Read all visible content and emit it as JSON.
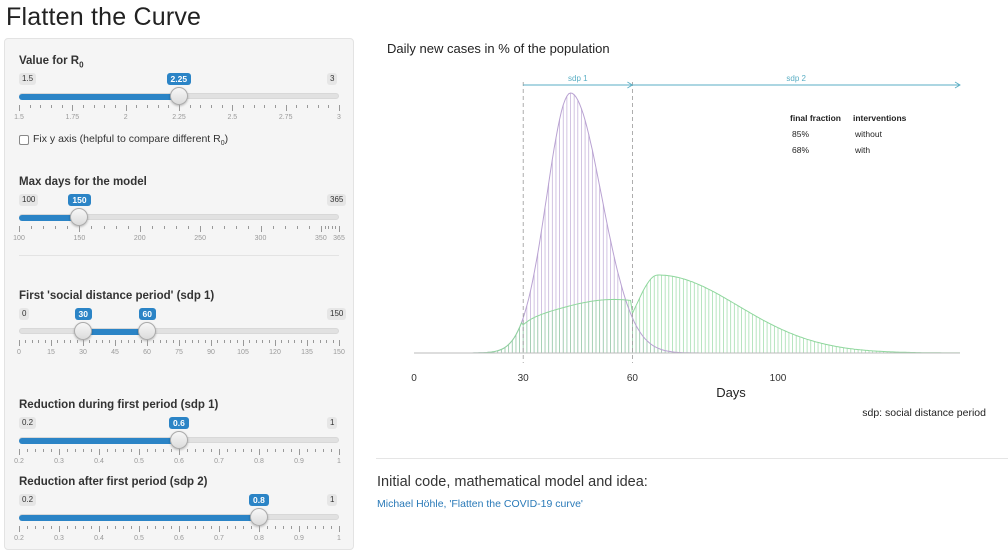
{
  "app": {
    "title": "Flatten the Curve"
  },
  "controls": {
    "r0": {
      "label": "Value for R",
      "label_sub": "0",
      "min": "1.5",
      "max": "3",
      "value": "2.25",
      "value_num": 2.25,
      "range": [
        1.5,
        3
      ],
      "ticks": [
        "1.5",
        "1.75",
        "2",
        "2.25",
        "2.5",
        "2.75",
        "3"
      ]
    },
    "fix_y": {
      "label": "Fix y axis (helpful to compare different R",
      "label_sub": "0",
      "label_end": ")",
      "checked": false
    },
    "max_days": {
      "label": "Max days for the model",
      "min": "100",
      "max": "365",
      "value": "150",
      "value_num": 150,
      "range": [
        100,
        365
      ],
      "ticks": [
        "100",
        "150",
        "200",
        "250",
        "300",
        "350",
        "365"
      ]
    },
    "sdp1": {
      "label": "First 'social distance period' (sdp 1)",
      "min": "0",
      "max": "150",
      "value_from": "30",
      "value_to": "60",
      "from_num": 30,
      "to_num": 60,
      "range": [
        0,
        150
      ],
      "ticks": [
        "0",
        "15",
        "30",
        "45",
        "60",
        "75",
        "90",
        "105",
        "120",
        "135",
        "150"
      ]
    },
    "red1": {
      "label": "Reduction during first period (sdp 1)",
      "min": "0.2",
      "max": "1",
      "value": "0.6",
      "value_num": 0.6,
      "range": [
        0.2,
        1
      ],
      "ticks": [
        "0.2",
        "0.3",
        "0.4",
        "0.5",
        "0.6",
        "0.7",
        "0.8",
        "0.9",
        "1"
      ]
    },
    "red2": {
      "label": "Reduction after first period (sdp 2)",
      "min": "0.2",
      "max": "1",
      "value": "0.8",
      "value_num": 0.8,
      "range": [
        0.2,
        1
      ],
      "ticks": [
        "0.2",
        "0.3",
        "0.4",
        "0.5",
        "0.6",
        "0.7",
        "0.8",
        "0.9",
        "1"
      ]
    }
  },
  "chart_data": {
    "type": "area",
    "title": "Daily new cases in % of the population",
    "xlabel": "Days",
    "xlim": [
      0,
      150
    ],
    "x_ticks": [
      0,
      30,
      60,
      100
    ],
    "period_markers": [
      30,
      60
    ],
    "period_labels": [
      "sdp 1",
      "sdp 2"
    ],
    "series": [
      {
        "name": "without",
        "color": "#b9a2d2",
        "final_fraction": "85%",
        "peak_day": 43
      },
      {
        "name": "with",
        "color": "#8fd79d",
        "final_fraction": "68%",
        "peak_day": 67
      }
    ],
    "legend_table": {
      "headers": [
        "final fraction",
        "interventions"
      ],
      "rows": [
        [
          "85%",
          "without"
        ],
        [
          "68%",
          "with"
        ]
      ]
    },
    "footnote": "sdp: social distance period",
    "colors": {
      "period": "#5aaec4",
      "guide": "#9a9a9a",
      "axis": "#bbbbbb"
    }
  },
  "credits": {
    "title": "Initial code, mathematical model and idea:",
    "link_text": "Michael Höhle, 'Flatten the COVID-19 curve'"
  }
}
